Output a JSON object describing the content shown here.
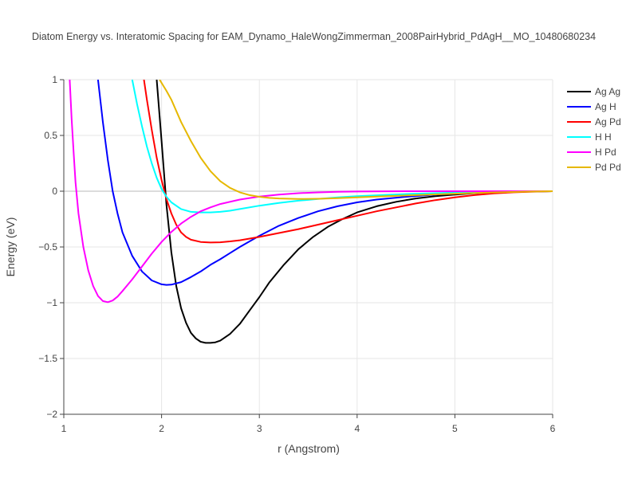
{
  "chart_data": {
    "type": "line",
    "title": "Diatom Energy vs. Interatomic Spacing for EAM_Dynamo_HaleWongZimmerman_2008PairHybrid_PdAgH__MO_10480680234",
    "xlabel": "r (Angstrom)",
    "ylabel": "Energy (eV)",
    "xlim": [
      1,
      6
    ],
    "ylim": [
      -2,
      1
    ],
    "xticks": [
      1,
      2,
      3,
      4,
      5,
      6
    ],
    "xtick_labels": [
      "1",
      "2",
      "3",
      "4",
      "5",
      "6"
    ],
    "yticks": [
      -2,
      -1.5,
      -1,
      -0.5,
      0,
      0.5,
      1
    ],
    "ytick_labels": [
      "−2",
      "−1.5",
      "−1",
      "−0.5",
      "0",
      "0.5",
      "1"
    ],
    "grid": true,
    "legend_position": "top-right",
    "series": [
      {
        "name": "Ag Ag",
        "color": "#000000",
        "x": [
          1.95,
          2.0,
          2.05,
          2.1,
          2.15,
          2.2,
          2.25,
          2.3,
          2.35,
          2.4,
          2.45,
          2.5,
          2.55,
          2.6,
          2.7,
          2.8,
          2.9,
          3.0,
          3.1,
          3.25,
          3.4,
          3.55,
          3.7,
          3.85,
          4.0,
          4.2,
          4.4,
          4.6,
          4.8,
          5.0,
          5.2,
          5.4,
          5.6,
          5.8,
          6.0
        ],
        "y": [
          1.0,
          0.45,
          -0.12,
          -0.55,
          -0.85,
          -1.05,
          -1.18,
          -1.27,
          -1.32,
          -1.35,
          -1.36,
          -1.36,
          -1.355,
          -1.34,
          -1.28,
          -1.19,
          -1.07,
          -0.95,
          -0.82,
          -0.66,
          -0.52,
          -0.41,
          -0.32,
          -0.25,
          -0.19,
          -0.135,
          -0.095,
          -0.065,
          -0.045,
          -0.03,
          -0.018,
          -0.01,
          -0.005,
          -0.002,
          0.0
        ]
      },
      {
        "name": "Ag H",
        "color": "#0000ff",
        "x": [
          1.35,
          1.4,
          1.45,
          1.5,
          1.55,
          1.6,
          1.7,
          1.8,
          1.9,
          2.0,
          2.05,
          2.1,
          2.2,
          2.3,
          2.4,
          2.5,
          2.6,
          2.7,
          2.8,
          2.9,
          3.0,
          3.2,
          3.4,
          3.6,
          3.8,
          4.0,
          4.2,
          4.5,
          4.8,
          5.1,
          5.4,
          5.7,
          6.0
        ],
        "y": [
          1.0,
          0.62,
          0.28,
          0.0,
          -0.2,
          -0.37,
          -0.58,
          -0.72,
          -0.8,
          -0.835,
          -0.84,
          -0.838,
          -0.815,
          -0.77,
          -0.72,
          -0.66,
          -0.61,
          -0.555,
          -0.5,
          -0.45,
          -0.4,
          -0.31,
          -0.24,
          -0.18,
          -0.135,
          -0.1,
          -0.075,
          -0.05,
          -0.03,
          -0.018,
          -0.009,
          -0.003,
          0.0
        ]
      },
      {
        "name": "Ag Pd",
        "color": "#ff0000",
        "x": [
          1.82,
          1.85,
          1.9,
          1.95,
          2.0,
          2.05,
          2.1,
          2.15,
          2.2,
          2.25,
          2.3,
          2.4,
          2.5,
          2.6,
          2.7,
          2.8,
          3.0,
          3.2,
          3.4,
          3.6,
          3.8,
          4.0,
          4.2,
          4.4,
          4.6,
          4.8,
          5.0,
          5.2,
          5.4,
          5.6,
          5.8,
          6.0
        ],
        "y": [
          1.0,
          0.82,
          0.55,
          0.3,
          0.1,
          -0.07,
          -0.2,
          -0.3,
          -0.37,
          -0.41,
          -0.435,
          -0.455,
          -0.46,
          -0.458,
          -0.45,
          -0.44,
          -0.41,
          -0.375,
          -0.34,
          -0.3,
          -0.26,
          -0.22,
          -0.18,
          -0.145,
          -0.11,
          -0.08,
          -0.055,
          -0.035,
          -0.02,
          -0.01,
          -0.004,
          0.0
        ]
      },
      {
        "name": "H H",
        "color": "#00ffff",
        "x": [
          1.7,
          1.75,
          1.8,
          1.85,
          1.9,
          1.95,
          2.0,
          2.05,
          2.1,
          2.2,
          2.3,
          2.4,
          2.5,
          2.6,
          2.7,
          2.8,
          3.0,
          3.2,
          3.4,
          3.6,
          3.8,
          4.0,
          4.3,
          4.6,
          5.0,
          5.4,
          5.8,
          6.0
        ],
        "y": [
          1.0,
          0.78,
          0.58,
          0.4,
          0.25,
          0.12,
          0.02,
          -0.05,
          -0.1,
          -0.16,
          -0.185,
          -0.19,
          -0.19,
          -0.185,
          -0.175,
          -0.16,
          -0.13,
          -0.105,
          -0.085,
          -0.07,
          -0.055,
          -0.045,
          -0.033,
          -0.022,
          -0.012,
          -0.005,
          -0.001,
          0.0
        ]
      },
      {
        "name": "H Pd",
        "color": "#ff00ff",
        "x": [
          1.06,
          1.08,
          1.1,
          1.12,
          1.15,
          1.2,
          1.25,
          1.3,
          1.35,
          1.4,
          1.45,
          1.5,
          1.55,
          1.6,
          1.7,
          1.8,
          1.9,
          2.0,
          2.1,
          2.2,
          2.3,
          2.4,
          2.5,
          2.6,
          2.8,
          3.0,
          3.2,
          3.4,
          3.6,
          3.8,
          4.0,
          4.5,
          5.0,
          5.5,
          6.0
        ],
        "y": [
          1.0,
          0.65,
          0.35,
          0.08,
          -0.2,
          -0.5,
          -0.71,
          -0.85,
          -0.94,
          -0.985,
          -0.995,
          -0.98,
          -0.945,
          -0.895,
          -0.79,
          -0.675,
          -0.56,
          -0.455,
          -0.365,
          -0.29,
          -0.23,
          -0.18,
          -0.145,
          -0.115,
          -0.075,
          -0.048,
          -0.03,
          -0.018,
          -0.011,
          -0.006,
          -0.003,
          0.0,
          0.0,
          0.0,
          0.0
        ]
      },
      {
        "name": "Pd Pd",
        "color": "#e6b800",
        "x": [
          1.98,
          2.05,
          2.1,
          2.2,
          2.3,
          2.4,
          2.5,
          2.6,
          2.7,
          2.8,
          2.9,
          3.0,
          3.1,
          3.2,
          3.4,
          3.6,
          3.8,
          4.0,
          4.3,
          4.6,
          5.0,
          5.4,
          5.8,
          6.0
        ],
        "y": [
          1.0,
          0.9,
          0.82,
          0.62,
          0.45,
          0.3,
          0.18,
          0.09,
          0.03,
          -0.01,
          -0.035,
          -0.05,
          -0.06,
          -0.065,
          -0.07,
          -0.068,
          -0.062,
          -0.055,
          -0.045,
          -0.035,
          -0.022,
          -0.011,
          -0.003,
          0.0
        ]
      }
    ]
  }
}
